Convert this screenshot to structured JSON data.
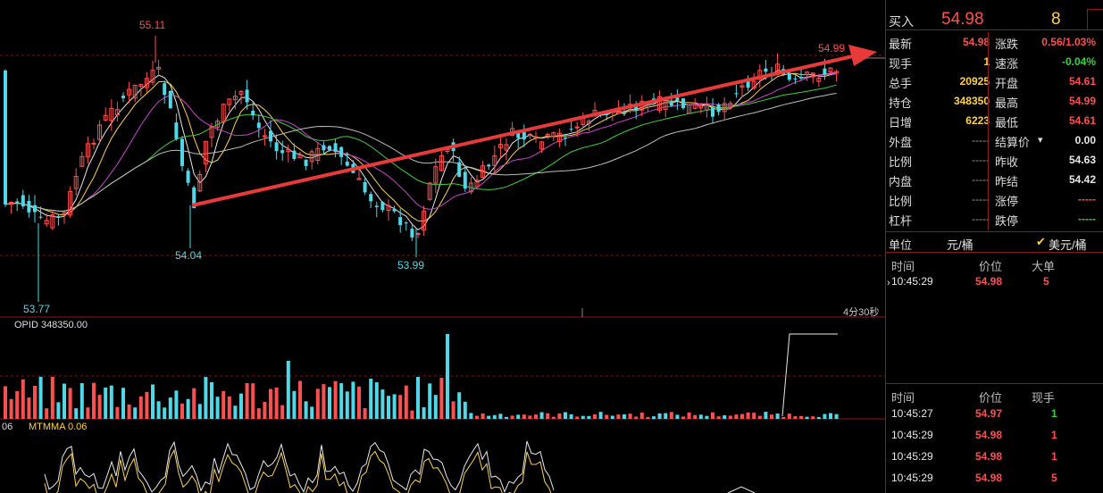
{
  "chart": {
    "high_label": "55.11",
    "right_label": "54.99",
    "low_label_1": "54.04",
    "low_label_2": "53.99",
    "low_label_3": "53.77",
    "timer": "4分30秒",
    "opid_label": "OPID 348350.00",
    "mtm_prefix": "06",
    "mtmma_label": "MTMMA 0.06"
  },
  "colors": {
    "up": "#ff4f4f",
    "down": "#4fd8e8",
    "trend_arrow": "#e83a3a"
  },
  "buy": {
    "label": "买入",
    "price": "54.98",
    "volume": "8"
  },
  "quote": {
    "rows": [
      {
        "left_label": "最新",
        "left_value": "54.98",
        "right_label": "涨跌",
        "right_value": "0.56/1.03%"
      },
      {
        "left_label": "现手",
        "left_value": "1",
        "right_label": "速涨",
        "right_value": "-0.04%"
      },
      {
        "left_label": "总手",
        "left_value": "20925",
        "right_label": "开盘",
        "right_value": "54.61"
      },
      {
        "left_label": "持仓",
        "left_value": "348350",
        "right_label": "最高",
        "right_value": "54.99"
      },
      {
        "left_label": "日增",
        "left_value": "6223",
        "right_label": "最低",
        "right_value": "54.61"
      },
      {
        "left_label": "外盘",
        "left_value": "-----",
        "right_label": "结算价",
        "right_value": "0.00"
      },
      {
        "left_label": "比例",
        "left_value": "-----",
        "right_label": "昨收",
        "right_value": "54.63"
      },
      {
        "left_label": "内盘",
        "left_value": "-----",
        "right_label": "昨结",
        "right_value": "54.42"
      },
      {
        "left_label": "比例",
        "left_value": "-----",
        "right_label": "涨停",
        "right_value": "-----"
      },
      {
        "left_label": "杠杆",
        "left_value": "-----",
        "right_label": "跌停",
        "right_value": "-----"
      }
    ]
  },
  "unit": {
    "label": "单位",
    "value": "元/桶",
    "alt": "美元/桶"
  },
  "big_orders": {
    "headers": {
      "time": "时间",
      "price": "价位",
      "vol": "大单"
    },
    "rows": [
      {
        "time": "10:45:29",
        "price": "54.98",
        "vol": "5"
      }
    ]
  },
  "ticks": {
    "headers": {
      "time": "时间",
      "price": "价位",
      "vol": "现手"
    },
    "rows": [
      {
        "time": "10:45:27",
        "price": "54.97",
        "vol": "1"
      },
      {
        "time": "10:45:29",
        "price": "54.98",
        "vol": "1"
      },
      {
        "time": "10:45:29",
        "price": "54.98",
        "vol": "1"
      },
      {
        "time": "10:45:29",
        "price": "54.98",
        "vol": "5"
      }
    ]
  }
}
